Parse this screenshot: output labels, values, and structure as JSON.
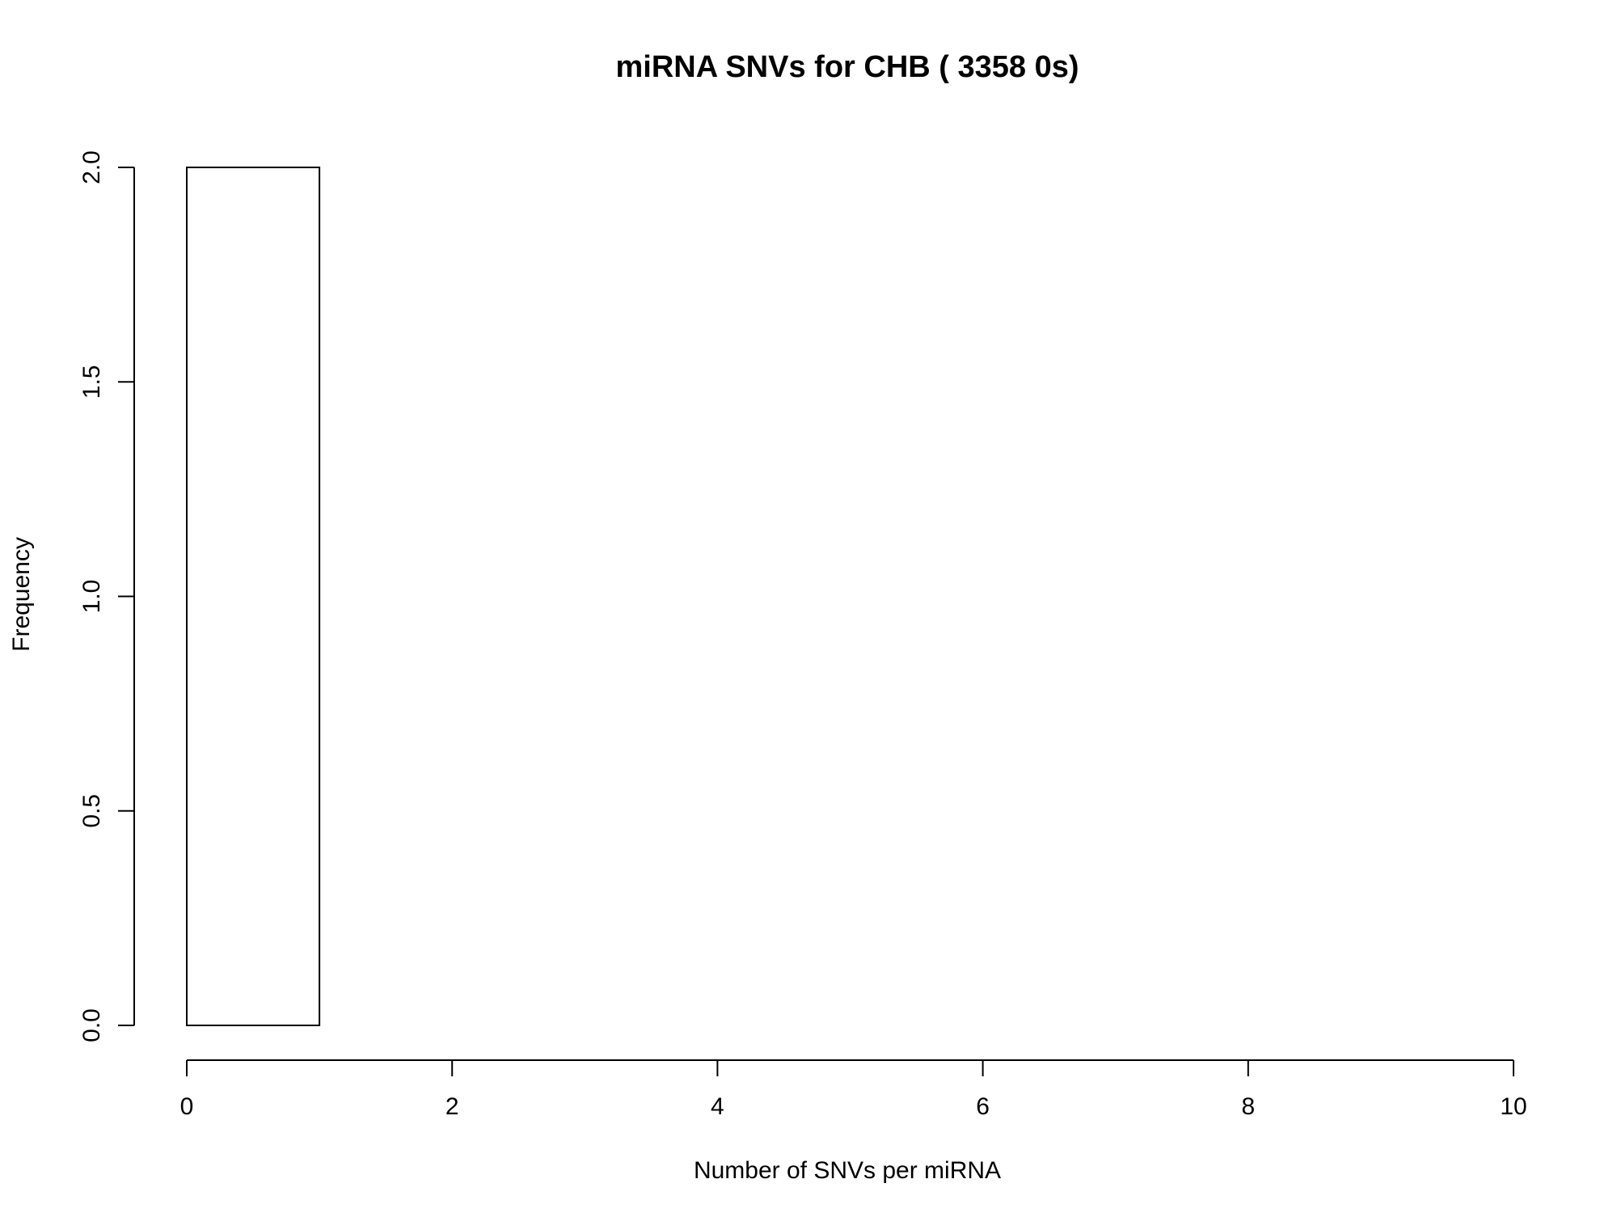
{
  "chart_data": {
    "type": "bar",
    "title": "miRNA SNVs for CHB ( 3358 0s)",
    "xlabel": "Number of SNVs per miRNA",
    "ylabel": "Frequency",
    "bins": [
      {
        "x0": 0,
        "x1": 1,
        "count": 2
      }
    ],
    "xlim": [
      0,
      10
    ],
    "ylim": [
      0,
      2
    ],
    "x_ticks": [
      0,
      2,
      4,
      6,
      8,
      10
    ],
    "x_tick_labels": [
      "0",
      "2",
      "4",
      "6",
      "8",
      "10"
    ],
    "y_ticks": [
      0,
      0.5,
      1,
      1.5,
      2
    ],
    "y_tick_labels": [
      "0.0",
      "0.5",
      "1.0",
      "1.5",
      "2.0"
    ],
    "grid": false,
    "legend": "none"
  }
}
